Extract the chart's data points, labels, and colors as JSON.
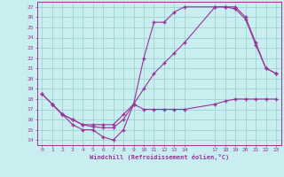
{
  "xlabel": "Windchill (Refroidissement éolien,°C)",
  "background_color": "#c8eef0",
  "grid_color": "#99cccc",
  "line_color": "#993399",
  "line1_x": [
    0,
    1,
    2,
    3,
    4,
    5,
    6,
    7,
    8,
    9,
    10,
    11,
    12,
    13,
    14,
    17,
    18,
    19,
    20,
    21,
    22,
    23
  ],
  "line1_y": [
    18.5,
    17.5,
    16.5,
    15.5,
    15.0,
    15.0,
    14.3,
    14.0,
    15.0,
    17.5,
    17.0,
    17.0,
    17.0,
    17.0,
    17.0,
    17.5,
    17.8,
    18.0,
    18.0,
    18.0,
    18.0,
    18.0
  ],
  "line2_x": [
    0,
    1,
    2,
    3,
    4,
    5,
    6,
    7,
    8,
    9,
    10,
    11,
    12,
    13,
    14,
    17,
    18,
    19,
    20,
    21,
    22,
    23
  ],
  "line2_y": [
    18.5,
    17.5,
    16.5,
    16.0,
    15.5,
    15.5,
    15.5,
    15.5,
    16.5,
    17.5,
    19.0,
    20.5,
    21.5,
    22.5,
    23.5,
    27.0,
    27.0,
    27.0,
    26.0,
    23.5,
    21.0,
    20.5
  ],
  "line3_x": [
    1,
    2,
    3,
    4,
    5,
    6,
    7,
    8,
    9,
    10,
    11,
    12,
    13,
    14,
    17,
    18,
    19,
    20,
    21,
    22,
    23
  ],
  "line3_y": [
    17.5,
    16.5,
    16.0,
    15.5,
    15.3,
    15.2,
    15.2,
    16.0,
    17.5,
    22.0,
    25.5,
    25.5,
    26.5,
    27.0,
    27.0,
    27.0,
    26.8,
    25.8,
    23.3,
    21.0,
    20.5
  ],
  "xlim": [
    -0.5,
    23.5
  ],
  "ylim": [
    13.5,
    27.5
  ],
  "yticks": [
    14,
    15,
    16,
    17,
    18,
    19,
    20,
    21,
    22,
    23,
    24,
    25,
    26,
    27
  ],
  "xtick_positions": [
    0,
    1,
    2,
    3,
    4,
    5,
    6,
    7,
    8,
    9,
    10,
    11,
    12,
    13,
    14,
    17,
    18,
    19,
    20,
    21,
    22,
    23
  ],
  "xtick_labels": [
    "0",
    "1",
    "2",
    "3",
    "4",
    "5",
    "6",
    "7",
    "8",
    "9",
    "10",
    "11",
    "12",
    "13",
    "14",
    "17",
    "18",
    "19",
    "20",
    "21",
    "22",
    "23"
  ]
}
